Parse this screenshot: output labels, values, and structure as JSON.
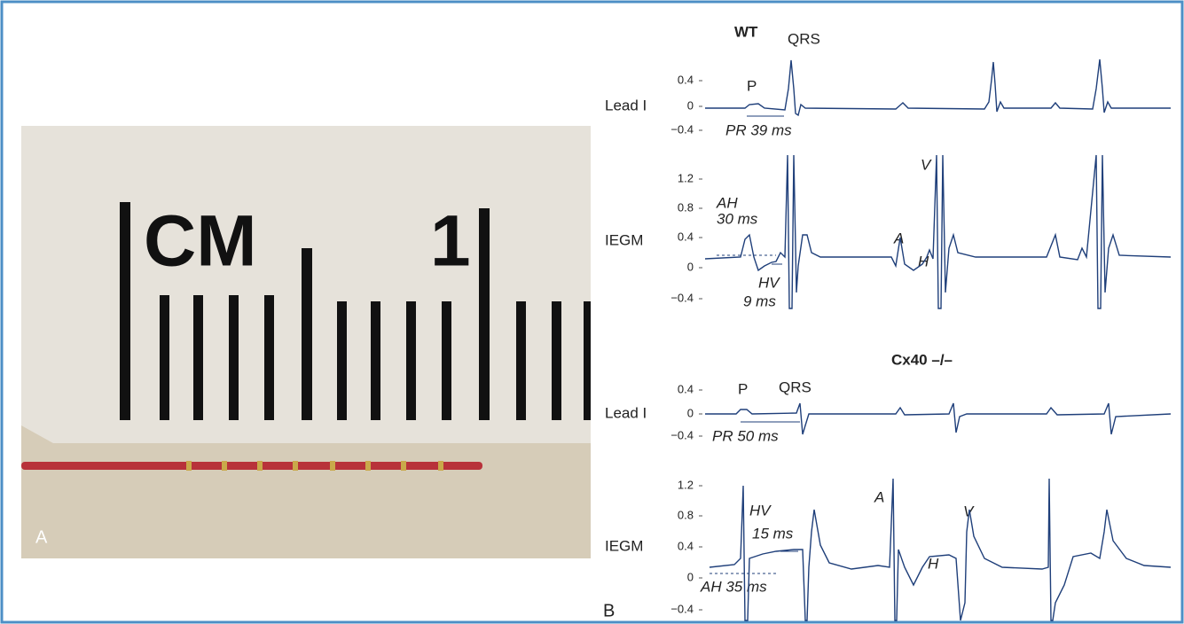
{
  "panel_a": {
    "label": "A",
    "photo_text": [
      "CM",
      "1"
    ]
  },
  "panel_b": {
    "label": "B",
    "groups": [
      {
        "title": "WT",
        "lead": {
          "name": "Lead I",
          "ticks": [
            "0.4",
            "0",
            "−0.4"
          ],
          "annotations": [
            "P",
            "QRS",
            "PR 39 ms"
          ]
        },
        "iegm": {
          "name": "IEGM",
          "ticks": [
            "1.2",
            "0.8",
            "0.4",
            "0",
            "−0.4"
          ],
          "annotations": [
            "AH",
            "30 ms",
            "HV",
            "9 ms",
            "A",
            "H",
            "V"
          ]
        }
      },
      {
        "title": "Cx40 –/–",
        "lead": {
          "name": "Lead I",
          "ticks": [
            "0.4",
            "0",
            "−0.4"
          ],
          "annotations": [
            "P",
            "QRS",
            "PR 50 ms"
          ]
        },
        "iegm": {
          "name": "IEGM",
          "ticks": [
            "1.2",
            "0.8",
            "0.4",
            "0",
            "−0.4"
          ],
          "annotations": [
            "HV",
            "15 ms",
            "AH 35 ms",
            "A",
            "H",
            "V"
          ]
        }
      }
    ]
  }
}
